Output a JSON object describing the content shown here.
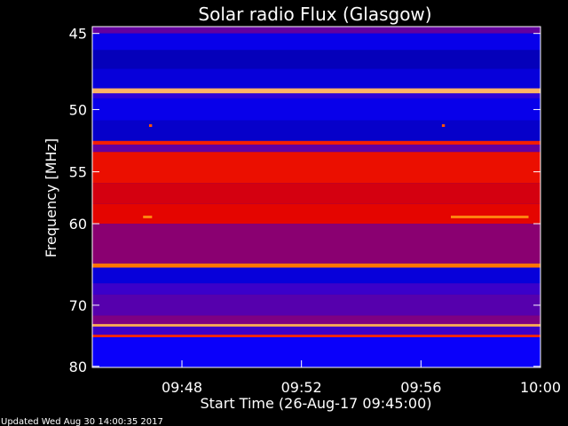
{
  "chart_data": {
    "type": "heatmap",
    "title": "Solar radio Flux (Glasgow)",
    "xlabel": "Start Time (26-Aug-17 09:45:00)",
    "ylabel": "Frequency [MHz]",
    "x_ticks": [
      "09:48",
      "09:52",
      "09:56",
      "10:00"
    ],
    "x_tick_minutes": [
      48,
      52,
      56,
      60
    ],
    "xlim_minutes": [
      45,
      60
    ],
    "y_ticks": [
      45,
      50,
      55,
      60,
      70,
      80
    ],
    "ylim": [
      44.6,
      80.2
    ],
    "y_scale": "reciprocal",
    "grid": false,
    "colormap": [
      "#00007a",
      "#0a00ff",
      "#7a0087",
      "#e00000",
      "#ff2a00",
      "#ff7a00",
      "#ffd2a0"
    ],
    "bands": [
      {
        "f0": 44.6,
        "f1": 45.0,
        "level": 0.3
      },
      {
        "f0": 45.0,
        "f1": 46.0,
        "level": 0.14
      },
      {
        "f0": 46.0,
        "f1": 47.2,
        "level": 0.08
      },
      {
        "f0": 47.2,
        "f1": 48.5,
        "level": 0.12
      },
      {
        "f0": 48.5,
        "f1": 48.85,
        "level": 0.94
      },
      {
        "f0": 48.85,
        "f1": 49.2,
        "level": 0.22
      },
      {
        "f0": 49.2,
        "f1": 50.8,
        "level": 0.14
      },
      {
        "f0": 50.8,
        "f1": 52.4,
        "level": 0.1
      },
      {
        "f0": 52.4,
        "f1": 52.7,
        "level": 0.62
      },
      {
        "f0": 52.7,
        "f1": 53.3,
        "level": 0.3
      },
      {
        "f0": 53.3,
        "f1": 56.0,
        "level": 0.56
      },
      {
        "f0": 56.0,
        "f1": 58.0,
        "level": 0.48
      },
      {
        "f0": 58.0,
        "f1": 60.0,
        "level": 0.52
      },
      {
        "f0": 60.0,
        "f1": 64.5,
        "level": 0.36
      },
      {
        "f0": 64.5,
        "f1": 65.0,
        "level": 0.82
      },
      {
        "f0": 65.0,
        "f1": 67.0,
        "level": 0.12
      },
      {
        "f0": 67.0,
        "f1": 68.5,
        "level": 0.24
      },
      {
        "f0": 68.5,
        "f1": 71.5,
        "level": 0.28
      },
      {
        "f0": 71.5,
        "f1": 72.8,
        "level": 0.34
      },
      {
        "f0": 72.8,
        "f1": 73.2,
        "level": 0.92
      },
      {
        "f0": 73.2,
        "f1": 74.5,
        "level": 0.24
      },
      {
        "f0": 74.5,
        "f1": 74.9,
        "level": 0.66
      },
      {
        "f0": 74.9,
        "f1": 80.2,
        "level": 0.16
      }
    ],
    "bursts": [
      {
        "t0": 46.7,
        "t1": 47.0,
        "freq": 59.3,
        "level": 0.85
      },
      {
        "t0": 57.0,
        "t1": 59.6,
        "freq": 59.3,
        "level": 0.85
      },
      {
        "t0": 46.9,
        "t1": 47.0,
        "freq": 51.2,
        "level": 0.75
      },
      {
        "t0": 56.7,
        "t1": 56.8,
        "freq": 51.2,
        "level": 0.75
      }
    ],
    "updated_text": "Updated Wed Aug 30 14:00:35 2017"
  }
}
